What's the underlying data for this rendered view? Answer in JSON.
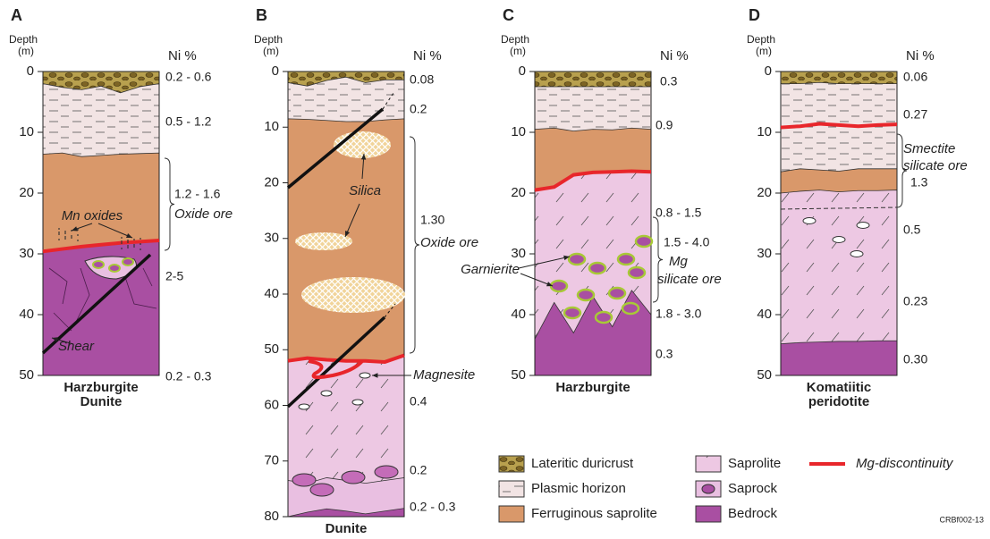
{
  "columns": [
    {
      "label": "A",
      "depth_label": "Depth",
      "depth_unit": "(m)",
      "ni_label": "Ni %",
      "depth_ticks": [
        0,
        10,
        20,
        30,
        40,
        50
      ],
      "ni_values": [
        "0.2 - 0.6",
        "0.5 - 1.2",
        "1.2 - 1.6",
        "2-5",
        "0.2 - 0.3"
      ],
      "ore": [
        "Oxide ore"
      ],
      "annotations": [
        "Mn oxides",
        "Shear"
      ],
      "rock": [
        "Harzburgite",
        "Dunite"
      ]
    },
    {
      "label": "B",
      "depth_label": "Depth",
      "depth_unit": "(m)",
      "ni_label": "Ni %",
      "depth_ticks": [
        0,
        10,
        20,
        30,
        40,
        50,
        60,
        70,
        80
      ],
      "ni_values": [
        "0.08",
        "0.2",
        "1.30",
        "0.4",
        "0.2",
        "0.2 - 0.3"
      ],
      "ore": [
        "Oxide ore"
      ],
      "annotations": [
        "Silica",
        "Magnesite"
      ],
      "rock": [
        "Dunite"
      ]
    },
    {
      "label": "C",
      "depth_label": "Depth",
      "depth_unit": "(m)",
      "ni_label": "Ni %",
      "depth_ticks": [
        0,
        10,
        20,
        30,
        40,
        50
      ],
      "ni_values": [
        "0.3",
        "0.9",
        "0.8 - 1.5",
        "1.5 - 4.0",
        "1.8 - 3.0",
        "0.3"
      ],
      "ore": [
        "Mg",
        "silicate ore"
      ],
      "annotations": [
        "Garnierite"
      ],
      "rock": [
        "Harzburgite"
      ]
    },
    {
      "label": "D",
      "depth_label": "Depth",
      "depth_unit": "(m)",
      "ni_label": "Ni %",
      "depth_ticks": [
        0,
        10,
        20,
        30,
        40,
        50
      ],
      "ni_values": [
        "0.06",
        "0.27",
        "1.3",
        "0.5",
        "0.23",
        "0.30"
      ],
      "ore": [
        "Smectite",
        "silicate ore"
      ],
      "annotations": [],
      "rock": [
        "Komatiitic",
        "peridotite"
      ]
    }
  ],
  "legend": [
    "Lateritic duricrust",
    "Plasmic horizon",
    "Ferruginous saprolite",
    "Saprolite",
    "Saprock",
    "Bedrock",
    "Mg-discontinuity"
  ],
  "code": "CRBf002-13"
}
